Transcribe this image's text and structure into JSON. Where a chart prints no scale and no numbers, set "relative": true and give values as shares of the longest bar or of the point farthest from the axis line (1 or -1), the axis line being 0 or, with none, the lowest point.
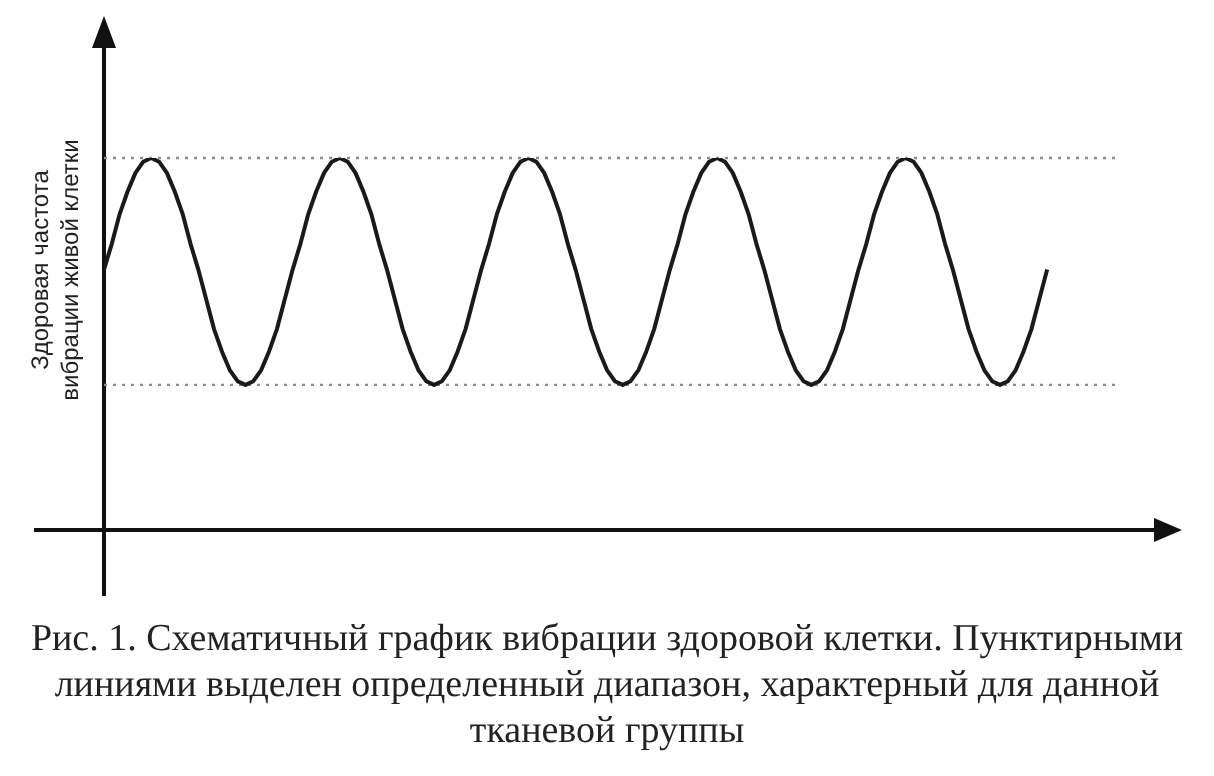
{
  "chart_data": {
    "type": "line",
    "relative": true,
    "ylabel": "Здоровая частота вибрации живой клетки",
    "annotations": [
      "Рис. 1. Схематичный график вибрации здоровой клетки. Пунктирными линиями выделен определенный диапазон, характерный для данной тканевой группы"
    ],
    "categories": [
      null,
      null,
      null,
      null,
      null,
      null,
      null,
      null,
      null,
      null,
      null,
      null,
      null,
      null,
      null,
      null,
      null,
      null,
      null,
      null,
      null,
      null,
      null,
      null,
      null,
      null,
      null,
      null,
      null,
      null,
      null,
      null,
      null,
      null,
      null,
      null,
      null,
      null,
      null,
      null,
      null,
      null,
      null,
      null,
      null,
      null,
      null,
      null,
      null,
      null,
      null,
      null,
      null,
      null,
      null,
      null,
      null,
      null,
      null,
      null,
      null,
      null,
      null,
      null,
      null,
      null,
      null,
      null,
      null,
      null,
      null,
      null,
      null,
      null,
      null,
      null,
      null,
      null,
      null,
      null,
      null,
      null,
      null,
      null,
      null,
      null,
      null,
      null,
      null,
      null,
      null,
      null,
      null,
      null,
      null,
      null,
      null,
      null,
      null,
      null,
      null,
      null,
      null,
      null,
      null,
      null,
      null,
      null,
      null,
      null,
      null,
      null,
      null,
      null,
      null,
      null,
      null,
      null,
      null,
      null,
      null
    ],
    "series": [
      {
        "color": "#1a1a1a",
        "values": [
          0.7,
          0.77,
          0.85,
          0.91,
          0.96,
          0.99,
          1,
          0.99,
          0.96,
          0.91,
          0.85,
          0.77,
          0.7,
          0.62,
          0.54,
          0.48,
          0.43,
          0.4,
          0.39,
          0.4,
          0.43,
          0.48,
          0.54,
          0.62,
          0.7,
          0.77,
          0.85,
          0.91,
          0.96,
          0.99,
          1,
          0.99,
          0.96,
          0.91,
          0.85,
          0.77,
          0.7,
          0.62,
          0.54,
          0.48,
          0.43,
          0.4,
          0.39,
          0.4,
          0.43,
          0.48,
          0.54,
          0.62,
          0.7,
          0.77,
          0.85,
          0.91,
          0.96,
          0.99,
          1,
          0.99,
          0.96,
          0.91,
          0.85,
          0.77,
          0.7,
          0.62,
          0.54,
          0.48,
          0.43,
          0.4,
          0.39,
          0.4,
          0.43,
          0.48,
          0.54,
          0.62,
          0.7,
          0.77,
          0.85,
          0.91,
          0.96,
          0.99,
          1,
          0.99,
          0.96,
          0.91,
          0.85,
          0.77,
          0.7,
          0.62,
          0.54,
          0.48,
          0.43,
          0.4,
          0.39,
          0.4,
          0.43,
          0.48,
          0.54,
          0.62,
          0.7,
          0.77,
          0.85,
          0.91,
          0.96,
          0.99,
          1,
          0.99,
          0.96,
          0.91,
          0.85,
          0.77,
          0.7,
          0.62,
          0.54,
          0.48,
          0.43,
          0.4,
          0.39,
          0.4,
          0.43,
          0.48,
          0.54,
          0.62,
          0.7
        ]
      }
    ],
    "ref_lines": [
      {
        "axis": "y",
        "value": 1,
        "color": "#8c8c8c",
        "line_style": "dotted"
      },
      {
        "axis": "y",
        "value": 0.39,
        "color": "#8c8c8c",
        "line_style": "dotted"
      }
    ],
    "tick_labels": false,
    "grid": false,
    "legend": false,
    "line_style": "solid"
  }
}
